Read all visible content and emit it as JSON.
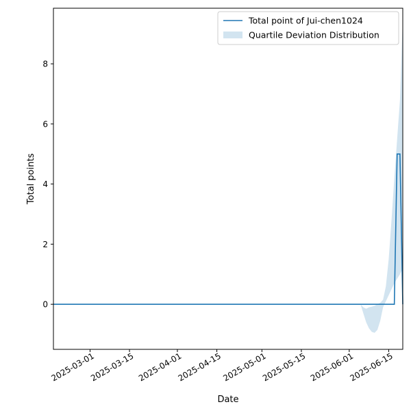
{
  "chart_data": {
    "type": "line",
    "xlabel": "Date",
    "ylabel": "Total points",
    "xlim": [
      "2025-02-16",
      "2025-06-20"
    ],
    "ylim": [
      -1.5,
      9.85
    ],
    "x_ticks": [
      "2025-03-01",
      "2025-03-15",
      "2025-04-01",
      "2025-04-15",
      "2025-05-01",
      "2025-05-15",
      "2025-06-01",
      "2025-06-15"
    ],
    "y_ticks": [
      0,
      2,
      4,
      6,
      8
    ],
    "legend_position": "top-right",
    "grid": false,
    "series": [
      {
        "name": "Total point of Jui-chen1024",
        "kind": "line",
        "color": "#1f77b4",
        "points": [
          {
            "x": "2025-02-16",
            "y": 0
          },
          {
            "x": "2025-06-17",
            "y": 0
          },
          {
            "x": "2025-06-18",
            "y": 5
          },
          {
            "x": "2025-06-19",
            "y": 5
          },
          {
            "x": "2025-06-20",
            "y": 0
          }
        ]
      },
      {
        "name": "Quartile Deviation Distribution",
        "kind": "band",
        "color": "#1f77b4",
        "opacity": 0.2,
        "points": [
          {
            "x": "2025-06-05",
            "low": 0.0,
            "high": 0.0
          },
          {
            "x": "2025-06-06",
            "low": -0.3,
            "high": -0.1
          },
          {
            "x": "2025-06-07",
            "low": -0.6,
            "high": -0.15
          },
          {
            "x": "2025-06-08",
            "low": -0.8,
            "high": -0.1
          },
          {
            "x": "2025-06-09",
            "low": -0.92,
            "high": -0.08
          },
          {
            "x": "2025-06-10",
            "low": -0.95,
            "high": -0.05
          },
          {
            "x": "2025-06-11",
            "low": -0.85,
            "high": 0.0
          },
          {
            "x": "2025-06-12",
            "low": -0.55,
            "high": 0.05
          },
          {
            "x": "2025-06-13",
            "low": -0.1,
            "high": 0.15
          },
          {
            "x": "2025-06-14",
            "low": 0.1,
            "high": 0.6
          },
          {
            "x": "2025-06-15",
            "low": 0.3,
            "high": 1.5
          },
          {
            "x": "2025-06-16",
            "low": 0.5,
            "high": 2.8
          },
          {
            "x": "2025-06-17",
            "low": 0.7,
            "high": 4.2
          },
          {
            "x": "2025-06-18",
            "low": 0.85,
            "high": 5.5
          },
          {
            "x": "2025-06-19",
            "low": 1.0,
            "high": 6.8
          },
          {
            "x": "2025-06-20",
            "low": 1.2,
            "high": 9.5
          }
        ]
      }
    ]
  }
}
